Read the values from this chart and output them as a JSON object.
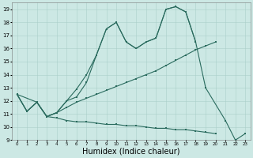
{
  "bg_color": "#cce8e4",
  "grid_color": "#aacfca",
  "line_color": "#2a6b5e",
  "xlabel": "Humidex (Indice chaleur)",
  "xlabel_fontsize": 7,
  "ylim": [
    9,
    19.5
  ],
  "xlim": [
    -0.5,
    23.5
  ],
  "yticks": [
    9,
    10,
    11,
    12,
    13,
    14,
    15,
    16,
    17,
    18,
    19
  ],
  "xticks": [
    0,
    1,
    2,
    3,
    4,
    5,
    6,
    7,
    8,
    9,
    10,
    11,
    12,
    13,
    14,
    15,
    16,
    17,
    18,
    19,
    20,
    21,
    22,
    23
  ],
  "figsize": [
    3.2,
    2.0
  ],
  "dpi": 100,
  "line1_x": [
    0,
    1,
    2,
    3,
    4,
    5,
    6,
    7,
    8,
    9,
    10,
    11,
    12,
    13,
    14,
    15,
    16,
    17,
    18,
    19,
    21,
    22,
    23
  ],
  "line1_y": [
    12.5,
    11.2,
    11.9,
    10.8,
    11.1,
    12.0,
    12.3,
    13.4,
    15.5,
    17.5,
    18.0,
    16.5,
    16.0,
    16.5,
    16.8,
    19.0,
    19.2,
    18.8,
    16.5,
    13.0,
    10.5,
    9.0,
    9.5
  ],
  "line2_x": [
    0,
    1,
    2,
    3,
    4,
    5,
    6,
    7,
    8,
    9,
    10,
    11,
    12,
    13,
    14,
    15,
    16,
    17,
    18,
    19,
    20
  ],
  "line2_y": [
    12.5,
    11.2,
    11.9,
    10.8,
    11.1,
    11.5,
    11.9,
    12.2,
    12.5,
    12.8,
    13.1,
    13.4,
    13.7,
    14.0,
    14.3,
    14.7,
    15.1,
    15.5,
    15.9,
    16.2,
    16.5
  ],
  "line3_x": [
    0,
    2,
    3,
    4,
    5,
    6,
    7,
    8,
    9,
    10,
    11,
    12,
    13,
    14,
    15,
    16,
    17,
    18
  ],
  "line3_y": [
    12.5,
    11.9,
    10.8,
    11.1,
    12.0,
    12.9,
    14.0,
    15.5,
    17.5,
    18.0,
    16.5,
    16.0,
    16.5,
    16.8,
    19.0,
    19.2,
    18.8,
    16.5
  ],
  "line4_x": [
    0,
    1,
    2,
    3,
    4,
    5,
    6,
    7,
    8,
    9,
    10,
    11,
    12,
    13,
    14,
    15,
    16,
    17,
    18,
    19,
    20
  ],
  "line4_y": [
    12.5,
    11.2,
    11.9,
    10.8,
    10.7,
    10.5,
    10.4,
    10.4,
    10.3,
    10.2,
    10.2,
    10.1,
    10.1,
    10.0,
    9.9,
    9.9,
    9.8,
    9.8,
    9.7,
    9.6,
    9.5
  ]
}
